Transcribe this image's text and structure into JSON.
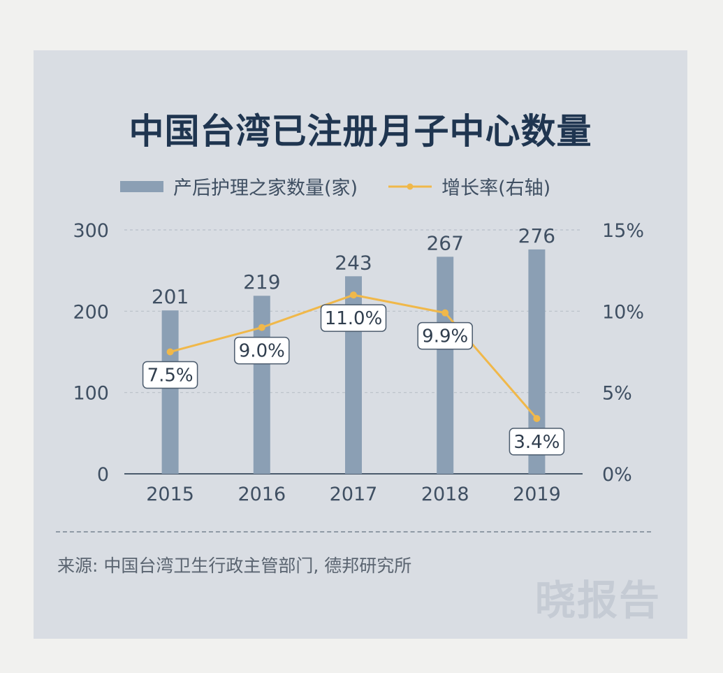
{
  "chart_data": {
    "type": "bar+line",
    "title": "中国台湾已注册月子中心数量",
    "categories": [
      "2015",
      "2016",
      "2017",
      "2018",
      "2019"
    ],
    "series": [
      {
        "name": "产后护理之家数量(家)",
        "type": "bar",
        "axis": "left",
        "values": [
          201,
          219,
          243,
          267,
          276
        ],
        "labels": [
          "201",
          "219",
          "243",
          "267",
          "276"
        ],
        "color": "#8b9fb4"
      },
      {
        "name": "增长率(右轴)",
        "type": "line",
        "axis": "right",
        "values": [
          7.5,
          9.0,
          11.0,
          9.9,
          3.4
        ],
        "labels": [
          "7.5%",
          "9.0%",
          "11.0%",
          "9.9%",
          "3.4%"
        ],
        "color": "#f0b84a"
      }
    ],
    "ylim_left": [
      0,
      300
    ],
    "yticks_left": [
      "0",
      "100",
      "200",
      "300"
    ],
    "ylim_right": [
      0,
      15
    ],
    "yticks_right": [
      "0%",
      "5%",
      "10%",
      "15%"
    ],
    "grid": true,
    "legend_position": "top"
  },
  "source": "来源: 中国台湾卫生行政主管部门, 德邦研究所",
  "watermark": "晓报告"
}
